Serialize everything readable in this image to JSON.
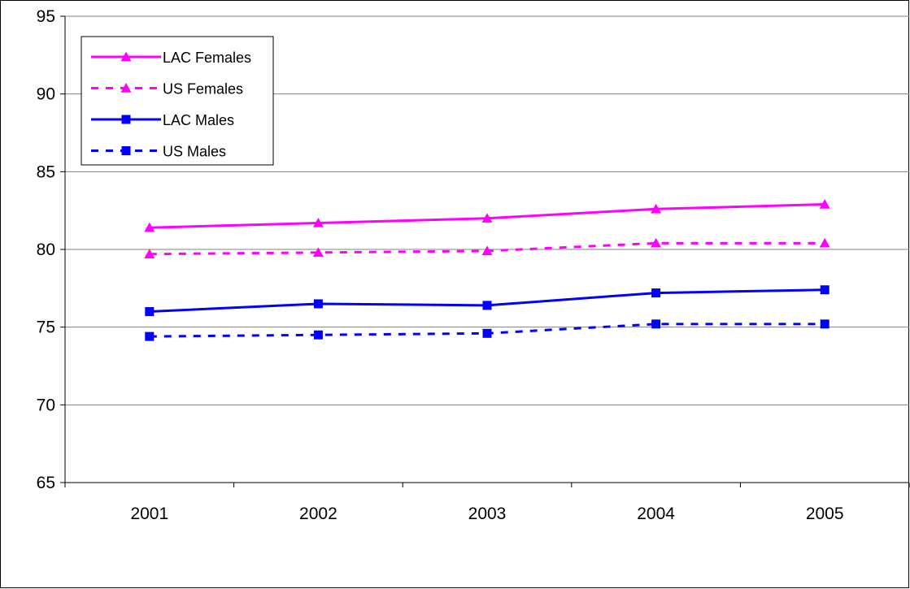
{
  "chart_data": {
    "type": "line",
    "title": "",
    "xlabel": "",
    "ylabel": "",
    "categories": [
      "2001",
      "2002",
      "2003",
      "2004",
      "2005"
    ],
    "ylim": [
      65,
      95
    ],
    "yticks": [
      65,
      70,
      75,
      80,
      85,
      90,
      95
    ],
    "grid": "horizontal",
    "legend_position": "top-left",
    "series": [
      {
        "name": "LAC Females",
        "values": [
          81.4,
          81.7,
          82.0,
          82.6,
          82.9
        ],
        "color": "#ff00ff",
        "line": "solid",
        "marker": "triangle"
      },
      {
        "name": "US Females",
        "values": [
          79.7,
          79.8,
          79.9,
          80.4,
          80.4
        ],
        "color": "#ff00ff",
        "line": "dotted",
        "marker": "triangle"
      },
      {
        "name": "LAC Males",
        "values": [
          76.0,
          76.5,
          76.4,
          77.2,
          77.4
        ],
        "color": "#0000ff",
        "line": "solid",
        "marker": "square"
      },
      {
        "name": "US Males",
        "values": [
          74.4,
          74.5,
          74.6,
          75.2,
          75.2
        ],
        "color": "#0000ff",
        "line": "dotted",
        "marker": "square"
      }
    ]
  }
}
